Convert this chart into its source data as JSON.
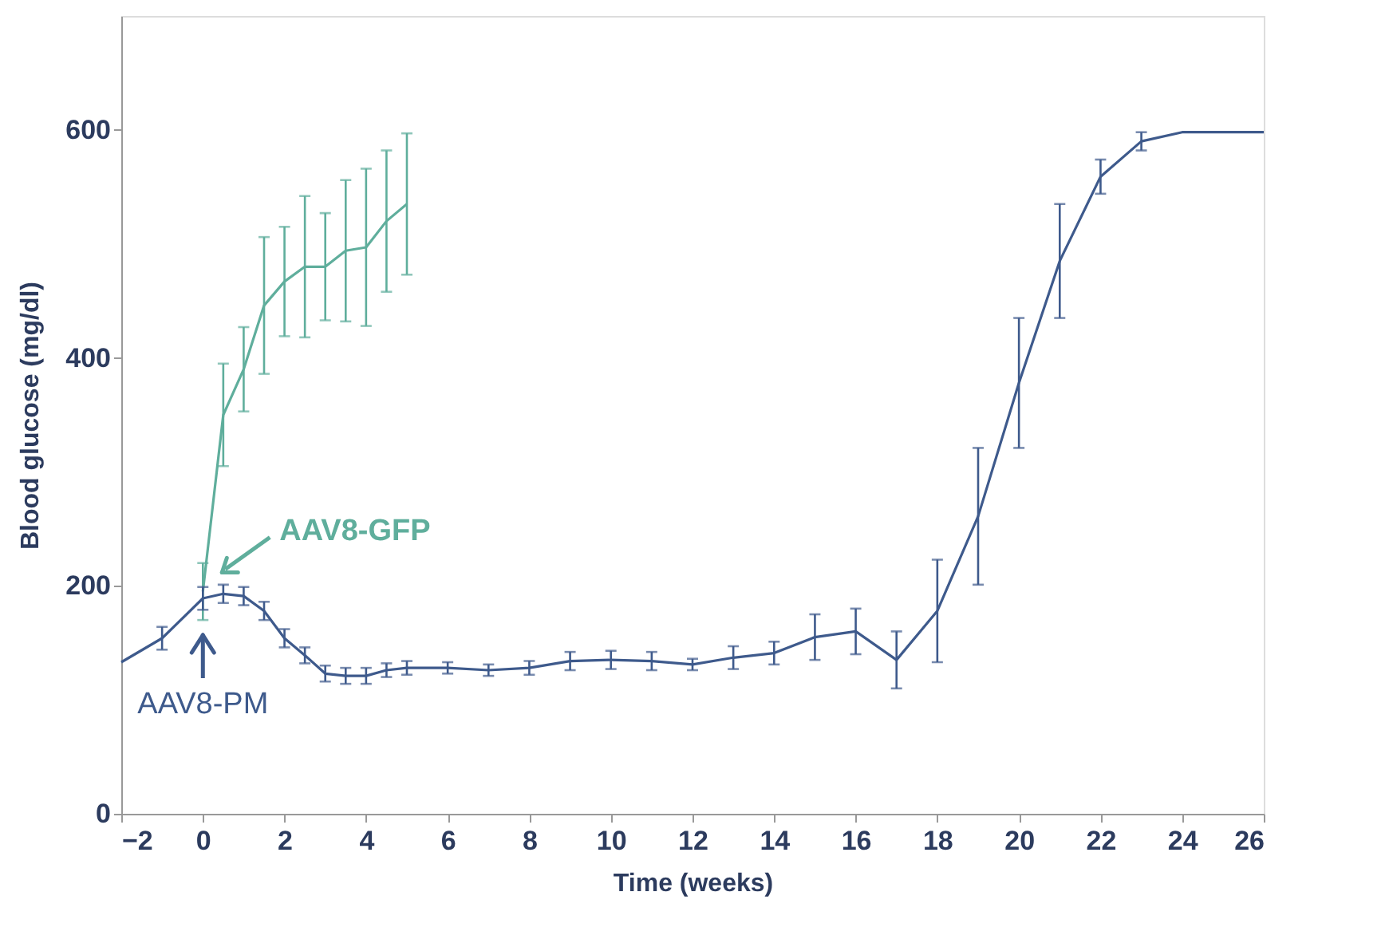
{
  "chart_data": {
    "type": "line",
    "xlabel": "Time (weeks)",
    "ylabel": "Blood glucose (mg/dl)",
    "xlim": [
      -2,
      26
    ],
    "xticks": [
      -2,
      0,
      2,
      4,
      6,
      8,
      10,
      12,
      14,
      16,
      18,
      20,
      22,
      24,
      26
    ],
    "ylim": [
      0,
      700
    ],
    "yticks": [
      0,
      200,
      400,
      600
    ],
    "grid": false,
    "marker": "none",
    "line_style": "solid",
    "series": [
      {
        "name": "AAV8-GFP",
        "color": "#5fae9c",
        "x": [
          0,
          0.5,
          1,
          1.5,
          2,
          2.5,
          3,
          3.5,
          4,
          4.5,
          5
        ],
        "values": [
          195,
          350,
          390,
          446,
          467,
          480,
          480,
          494,
          497,
          520,
          535
        ],
        "errors": [
          25,
          45,
          37,
          60,
          48,
          62,
          47,
          62,
          69,
          62,
          62
        ]
      },
      {
        "name": "AAV8-PM",
        "color": "#3e5a8c",
        "x": [
          -2,
          -1,
          0,
          0.5,
          1,
          1.5,
          2,
          2.5,
          3,
          3.5,
          4,
          4.5,
          5,
          6,
          7,
          8,
          9,
          10,
          11,
          12,
          13,
          14,
          15,
          16,
          17,
          18,
          19,
          20,
          21,
          22,
          23,
          24,
          26
        ],
        "values": [
          133,
          154,
          189,
          193,
          191,
          178,
          154,
          139,
          123,
          121,
          121,
          126,
          128,
          128,
          126,
          128,
          134,
          135,
          134,
          131,
          137,
          141,
          155,
          160,
          135,
          178,
          261,
          378,
          485,
          559,
          590,
          598,
          598
        ],
        "errors": [
          null,
          10,
          10,
          8,
          8,
          8,
          8,
          7,
          7,
          7,
          7,
          6,
          6,
          5,
          5,
          6,
          8,
          8,
          8,
          5,
          10,
          10,
          20,
          20,
          25,
          45,
          60,
          57,
          50,
          15,
          8,
          null,
          null
        ]
      }
    ]
  }
}
